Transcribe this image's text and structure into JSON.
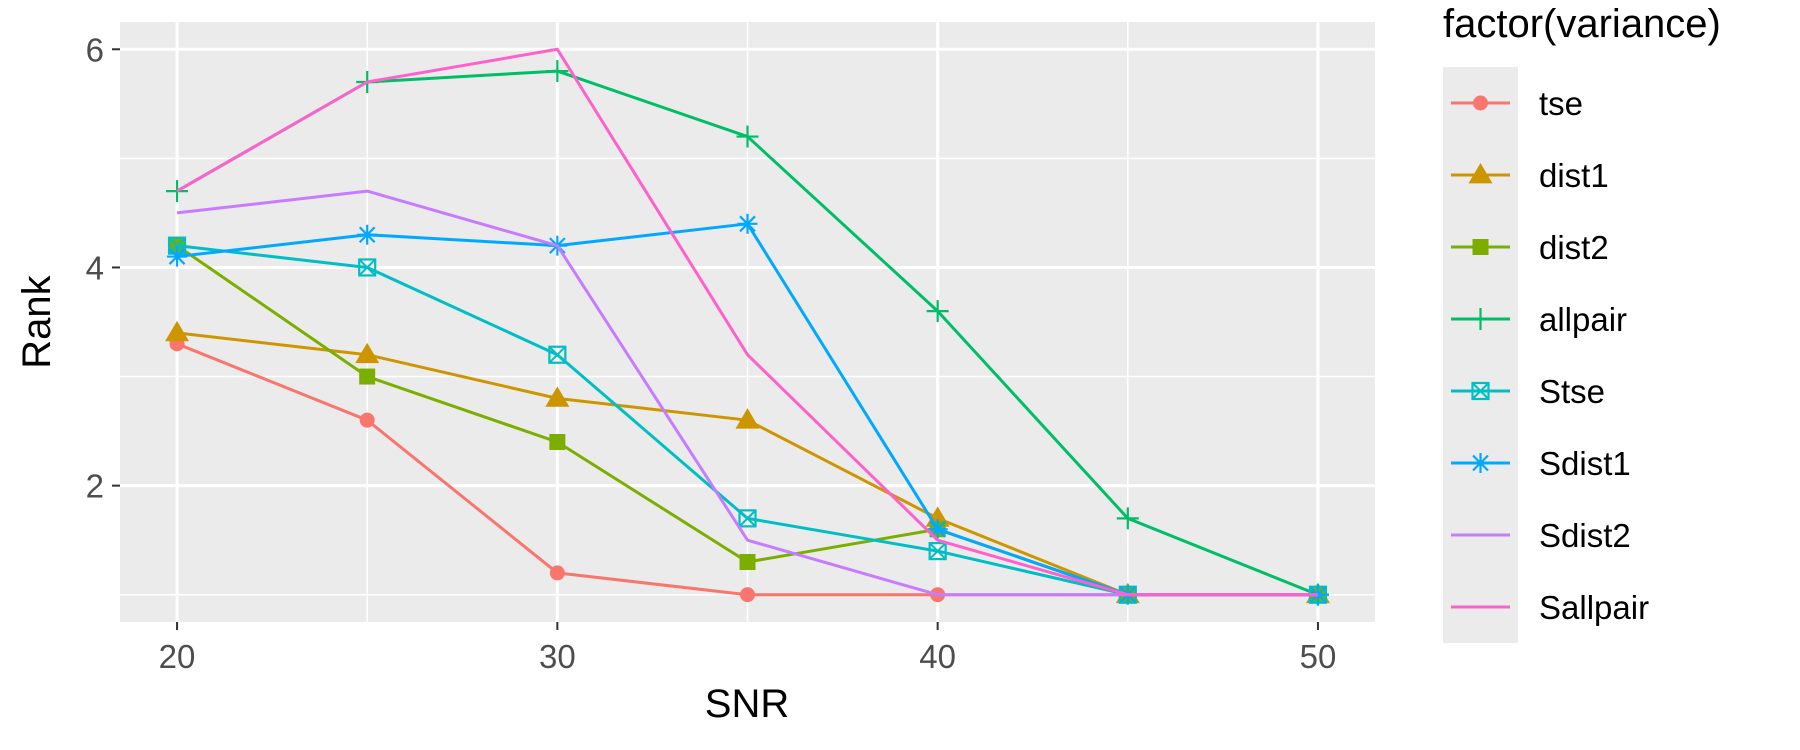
{
  "chart_data": {
    "type": "line",
    "xlabel": "SNR",
    "ylabel": "Rank",
    "x": [
      20,
      25,
      30,
      35,
      40,
      45,
      50
    ],
    "xticks": [
      20,
      30,
      40,
      50
    ],
    "yticks": [
      2,
      4,
      6
    ],
    "xlim": [
      18.5,
      51.5
    ],
    "ylim": [
      0.75,
      6.25
    ],
    "grid": true,
    "legend": {
      "title": "factor(variance)",
      "position": "right"
    },
    "series": [
      {
        "name": "tse",
        "color": "#F8766D",
        "marker": "circle",
        "values": [
          3.3,
          2.6,
          1.2,
          1.0,
          1.0,
          1.0,
          1.0
        ]
      },
      {
        "name": "dist1",
        "color": "#CD9600",
        "marker": "triangle",
        "values": [
          3.4,
          3.2,
          2.8,
          2.6,
          1.7,
          1.0,
          1.0
        ]
      },
      {
        "name": "dist2",
        "color": "#7CAE00",
        "marker": "square",
        "values": [
          4.2,
          3.0,
          2.4,
          1.3,
          1.6,
          1.0,
          1.0
        ]
      },
      {
        "name": "allpair",
        "color": "#00BE67",
        "marker": "plus",
        "values": [
          4.7,
          5.7,
          5.8,
          5.2,
          3.6,
          1.7,
          1.0
        ]
      },
      {
        "name": "Stse",
        "color": "#00BFC4",
        "marker": "boxed-x",
        "values": [
          4.2,
          4.0,
          3.2,
          1.7,
          1.4,
          1.0,
          1.0
        ]
      },
      {
        "name": "Sdist1",
        "color": "#00A9FF",
        "marker": "asterisk",
        "values": [
          4.1,
          4.3,
          4.2,
          4.4,
          1.6,
          1.0,
          1.0
        ]
      },
      {
        "name": "Sdist2",
        "color": "#C77CFF",
        "marker": "none",
        "values": [
          4.5,
          4.7,
          4.2,
          1.5,
          1.0,
          1.0,
          1.0
        ]
      },
      {
        "name": "Sallpair",
        "color": "#FF61CC",
        "marker": "none",
        "values": [
          4.7,
          5.7,
          6.0,
          3.2,
          1.5,
          1.0,
          1.0
        ]
      }
    ]
  }
}
